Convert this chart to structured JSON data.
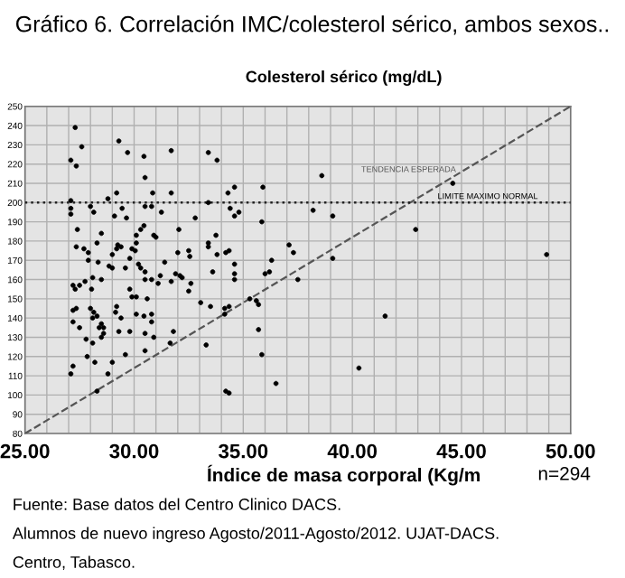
{
  "chart_data": {
    "type": "scatter",
    "title": "Gráfico 6. Correlación IMC/colesterol sérico, ambos sexos..",
    "ylabel": "Colesterol sérico (mg/dL)",
    "xlabel": "Índice de masa corporal (Kg/m",
    "annotations": [
      "n=294",
      "Fuente: Base datos del Centro Clinico DACS.",
      "Alumnos de nuevo ingreso Agosto/2011-Agosto/2012. UJAT-DACS.",
      "Centro, Tabasco."
    ],
    "xlim": [
      25,
      50
    ],
    "ylim": [
      80,
      250
    ],
    "xticks": [
      {
        "value": 25,
        "label": "25.00"
      },
      {
        "value": 26,
        "label": null
      },
      {
        "value": 27,
        "label": null
      },
      {
        "value": 28,
        "label": null
      },
      {
        "value": 29,
        "label": null
      },
      {
        "value": 30,
        "label": "30.00"
      },
      {
        "value": 31,
        "label": null
      },
      {
        "value": 32,
        "label": null
      },
      {
        "value": 33,
        "label": null
      },
      {
        "value": 34,
        "label": null
      },
      {
        "value": 35,
        "label": "35.00"
      },
      {
        "value": 36,
        "label": null
      },
      {
        "value": 37,
        "label": null
      },
      {
        "value": 38,
        "label": null
      },
      {
        "value": 39,
        "label": null
      },
      {
        "value": 40,
        "label": "40.00"
      },
      {
        "value": 41,
        "label": null
      },
      {
        "value": 42,
        "label": null
      },
      {
        "value": 43,
        "label": null
      },
      {
        "value": 44,
        "label": null
      },
      {
        "value": 45,
        "label": "45.00"
      },
      {
        "value": 46,
        "label": null
      },
      {
        "value": 47,
        "label": null
      },
      {
        "value": 48,
        "label": null
      },
      {
        "value": 49,
        "label": null
      },
      {
        "value": 50,
        "label": "50.00"
      }
    ],
    "yticks": [
      80,
      90,
      100,
      110,
      120,
      130,
      140,
      150,
      160,
      170,
      180,
      190,
      200,
      210,
      220,
      230,
      240,
      250
    ],
    "grid": true,
    "marker": "circle",
    "ref_lines": [
      {
        "axis": "y",
        "value": 200,
        "label": "LIMITE MAXIMO NORMAL",
        "color": "#222222",
        "line_style": "dotted"
      }
    ],
    "series": [
      {
        "color": "#000000",
        "x": [
          27.3,
          27.6,
          27.1,
          27.35,
          29.3,
          29.7,
          30.45,
          30.5,
          31.7,
          33.4,
          33.8,
          38.6,
          31.7,
          29.2,
          28.8,
          27.1,
          27.1,
          27.1,
          28.0,
          28.15,
          29.45,
          29.65,
          29.1,
          30.5,
          30.8,
          30.85,
          31.25,
          32.8,
          33.4,
          34.3,
          34.6,
          34.4,
          34.6,
          34.8,
          35.9,
          35.85,
          38.2,
          27.4,
          28.5,
          30.3,
          30.45,
          30.1,
          30.9,
          31.0,
          32.05,
          33.75,
          27.35,
          27.7,
          27.9,
          28.3,
          29.25,
          29.4,
          29.2,
          29.0,
          29.9,
          30.1,
          30.05,
          27.9,
          28.35,
          28.85,
          29.0,
          29.6,
          29.8,
          31.4,
          32.0,
          32.5,
          32.55,
          33.4,
          33.4,
          33.8,
          34.2,
          34.35,
          33.6,
          34.6,
          34.6,
          34.6,
          36.3,
          36.0,
          36.2,
          37.1,
          37.3,
          37.5,
          30.2,
          30.3,
          30.5,
          30.5,
          30.8,
          31.2,
          31.9,
          32.1,
          32.2,
          32.6,
          32.5,
          31.1,
          27.2,
          27.3,
          27.5,
          27.75,
          28.1,
          28.05,
          28.5,
          29.8,
          30.1,
          29.9,
          31.7,
          27.35,
          27.2,
          27.2,
          27.5,
          28.0,
          28.15,
          28.1,
          28.3,
          28.5,
          28.4,
          28.6,
          27.8,
          28.1,
          28.5,
          28.6,
          29.2,
          29.15,
          29.4,
          29.3,
          29.8,
          29.6,
          30.1,
          30.45,
          30.8,
          30.8,
          30.5,
          30.9,
          30.5,
          30.6,
          31.8,
          31.65,
          33.05,
          33.5,
          34.15,
          34.15,
          34.35,
          33.3,
          34.2,
          34.35,
          35.3,
          35.6,
          35.7,
          35.7,
          35.85,
          36.5,
          27.85,
          28.2,
          27.2,
          27.1,
          29.0,
          28.8,
          28.3,
          39.1,
          44.6,
          42.9,
          39.1,
          48.9,
          41.5,
          40.3
        ],
        "values": [
          239,
          229,
          222,
          219,
          232,
          226,
          224,
          213,
          227,
          226,
          222,
          214,
          205,
          205,
          202,
          201,
          197,
          194,
          198,
          195,
          197,
          192,
          193,
          198,
          198,
          205,
          195,
          192,
          200,
          205,
          208,
          197,
          193,
          195,
          208,
          190,
          196,
          186,
          184,
          186,
          188,
          183,
          183,
          182,
          186,
          183,
          177,
          176,
          174,
          179,
          178,
          177,
          176,
          173,
          176,
          179,
          175,
          170,
          169,
          167,
          166,
          166,
          171,
          169,
          174,
          175,
          172,
          179,
          177,
          173,
          174,
          175,
          164,
          168,
          163,
          160,
          170,
          163,
          164,
          178,
          174,
          160,
          168,
          166,
          164,
          160,
          160,
          162,
          163,
          162,
          161,
          158,
          154,
          158,
          157,
          155,
          157,
          159,
          161,
          155,
          160,
          155,
          151,
          151,
          159,
          145,
          144,
          138,
          135,
          145,
          143,
          140,
          141,
          137,
          135,
          135,
          129,
          127,
          130,
          132,
          146,
          143,
          140,
          133,
          133,
          121,
          142,
          141,
          142,
          138,
          132,
          130,
          123,
          150,
          133,
          127,
          148,
          146,
          145,
          142,
          146,
          126,
          102,
          101,
          150,
          149,
          147,
          134,
          121,
          106,
          120,
          117,
          115,
          111,
          117,
          111,
          102,
          193,
          210,
          186,
          171,
          173,
          141,
          114
        ]
      },
      {
        "type": "line",
        "name": "TENDENCIA ESPERADA",
        "color": "#555555",
        "line_style": "dashed",
        "marker": "none",
        "x": [
          25,
          50
        ],
        "values": [
          80,
          250
        ]
      }
    ]
  }
}
